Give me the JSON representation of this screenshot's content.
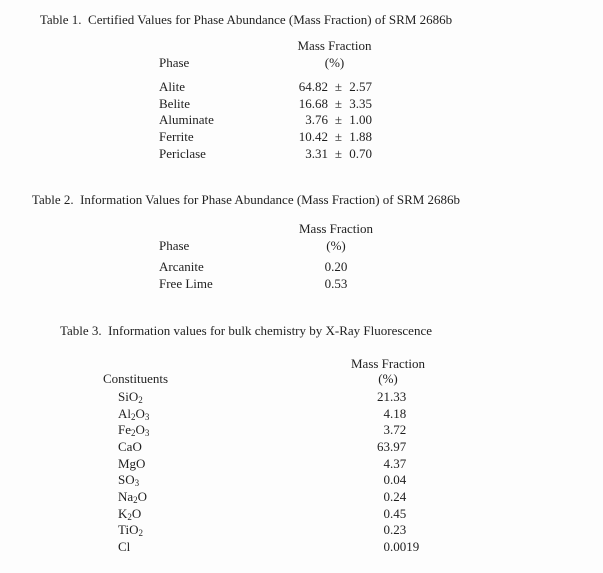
{
  "document": {
    "background_color": "#fdfdfd",
    "text_color": "#1f1f1f"
  },
  "tables": [
    {
      "title": "Table 1.  Certified Values for Phase Abundance (Mass Fraction) of SRM 2686b",
      "column1_header": "Phase",
      "column2_header_line1": "Mass Fraction",
      "column2_header_line2": "(%)",
      "rows": [
        {
          "label": "Alite",
          "value": "64.82",
          "pm": "±",
          "uncertainty": "2.57"
        },
        {
          "label": "Belite",
          "value": "16.68",
          "pm": "±",
          "uncertainty": "3.35"
        },
        {
          "label": "Aluminate",
          "value": "3.76",
          "pm": "±",
          "uncertainty": "1.00"
        },
        {
          "label": "Ferrite",
          "value": "10.42",
          "pm": "±",
          "uncertainty": "1.88"
        },
        {
          "label": "Periclase",
          "value": "3.31",
          "pm": "±",
          "uncertainty": "0.70"
        }
      ]
    },
    {
      "title": "Table 2.  Information Values for Phase Abundance (Mass Fraction) of SRM 2686b",
      "column1_header": "Phase",
      "column2_header_line1": "Mass Fraction",
      "column2_header_line2": "(%)",
      "rows": [
        {
          "label": "Arcanite",
          "value": "0.20"
        },
        {
          "label": "Free Lime",
          "value": "0.53"
        }
      ]
    },
    {
      "title": "Table 3.  Information values for bulk chemistry by X-Ray Fluorescence",
      "column1_header": "Constituents",
      "column2_header_line1": "Mass Fraction",
      "column2_header_line2": "(%)",
      "rows": [
        {
          "formula": "SiO_2",
          "value": "21.33"
        },
        {
          "formula": "Al_2O_3",
          "value": "4.18"
        },
        {
          "formula": "Fe_2O_3",
          "value": "3.72"
        },
        {
          "formula": "CaO",
          "value": "63.97"
        },
        {
          "formula": "MgO",
          "value": "4.37"
        },
        {
          "formula": "SO_3",
          "value": "0.04"
        },
        {
          "formula": "Na_2O",
          "value": "0.24"
        },
        {
          "formula": "K_2O",
          "value": "0.45"
        },
        {
          "formula": "TiO_2",
          "value": "0.23"
        },
        {
          "formula": "Cl",
          "value": "0.0019"
        }
      ]
    }
  ]
}
